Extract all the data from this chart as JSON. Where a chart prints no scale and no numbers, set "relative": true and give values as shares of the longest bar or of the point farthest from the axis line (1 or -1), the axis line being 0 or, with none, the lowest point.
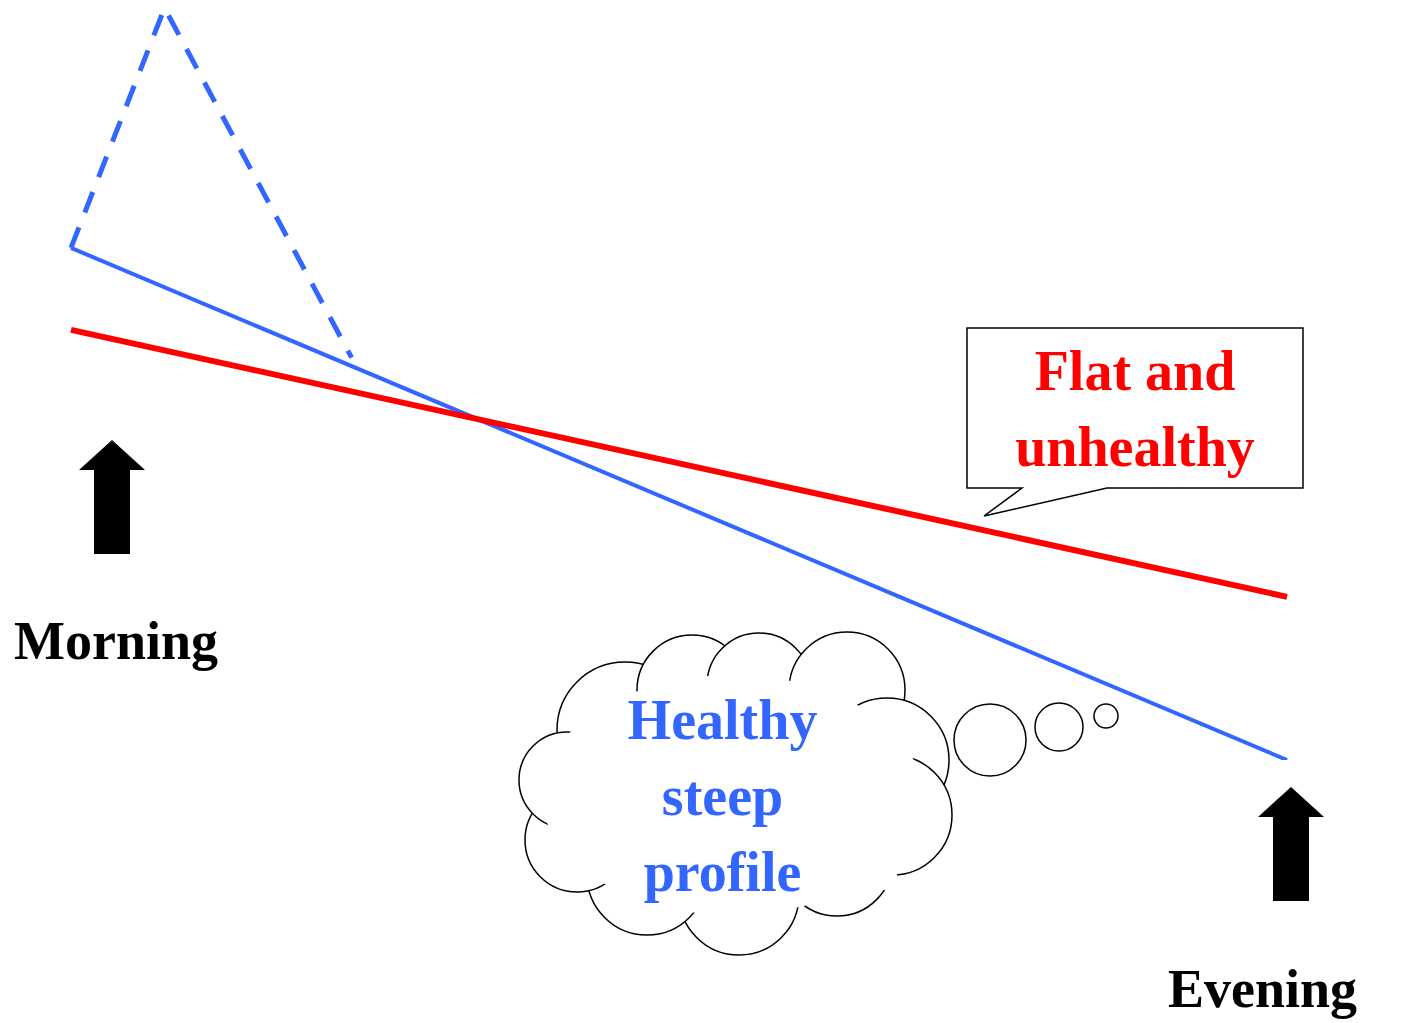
{
  "chart_data": {
    "type": "line",
    "relative": true,
    "categories": [
      null,
      null,
      null,
      null,
      null,
      null,
      null,
      null,
      null,
      null,
      null,
      null,
      null,
      null
    ],
    "annotations": [
      "Morning",
      "Evening"
    ],
    "series": [
      {
        "name": "Flat and unhealthy",
        "color": "#ff0000",
        "values": [
          0.572,
          null,
          null,
          null,
          null,
          null,
          null,
          null,
          null,
          null,
          null,
          null,
          null,
          0.217
        ]
      },
      {
        "name": "Healthy steep profile",
        "color": "#3366ff",
        "values": [
          0.681,
          null,
          null,
          null,
          null,
          null,
          null,
          null,
          null,
          null,
          null,
          null,
          null,
          0
        ]
      },
      {
        "color": "#3366ff",
        "line_style": "dashed",
        "values": [
          0.681,
          1,
          null,
          0.535,
          null,
          null,
          null,
          null,
          null,
          null,
          null,
          null,
          null,
          null
        ]
      }
    ]
  }
}
